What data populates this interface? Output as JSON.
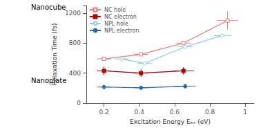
{
  "chart_data": {
    "type": "line",
    "xlabel": "Excitation Energy Eₑₓ (eV)",
    "ylabel": "Relaxation Time (fs)",
    "xlim": [
      0.1,
      1.05
    ],
    "ylim": [
      0,
      1300
    ],
    "xticks": [
      0.2,
      0.4,
      0.6,
      0.8,
      1.0
    ],
    "yticks": [
      0,
      400,
      800,
      1200
    ],
    "grid": false,
    "legend": "upper left",
    "annotations": [
      {
        "text": "Nanocube"
      },
      {
        "text": "Nanoplate"
      }
    ],
    "series": [
      {
        "name": "NC hole",
        "color": "#e87878",
        "marker": "open_square",
        "x": [
          0.2,
          0.41,
          0.65,
          0.9
        ],
        "values": [
          590,
          650,
          800,
          1100
        ],
        "xerr": [
          0.04,
          0.04,
          0.04,
          0.06
        ],
        "yerr": [
          0,
          0,
          0,
          120
        ]
      },
      {
        "name": "NC electron",
        "color": "#b00000",
        "marker": "square",
        "x": [
          0.2,
          0.41,
          0.65
        ],
        "values": [
          430,
          400,
          430
        ],
        "xerr": [
          0.04,
          0.04,
          0.06
        ],
        "yerr": [
          60,
          50,
          50
        ]
      },
      {
        "name": "NPL hole",
        "color": "#87ceeb",
        "marker": "open_circle",
        "x": [
          0.3,
          0.43,
          0.66,
          0.87
        ],
        "values": [
          590,
          530,
          750,
          900
        ],
        "xerr": [
          0.04,
          0.04,
          0.04,
          0.05
        ],
        "yerr": [
          0,
          0,
          0,
          0
        ]
      },
      {
        "name": "NPL electron",
        "color": "#1e6eb5",
        "marker": "circle",
        "x": [
          0.2,
          0.41,
          0.66
        ],
        "values": [
          215,
          205,
          225
        ],
        "xerr": [
          0.04,
          0.04,
          0.06
        ],
        "yerr": [
          30,
          25,
          30
        ]
      }
    ]
  }
}
